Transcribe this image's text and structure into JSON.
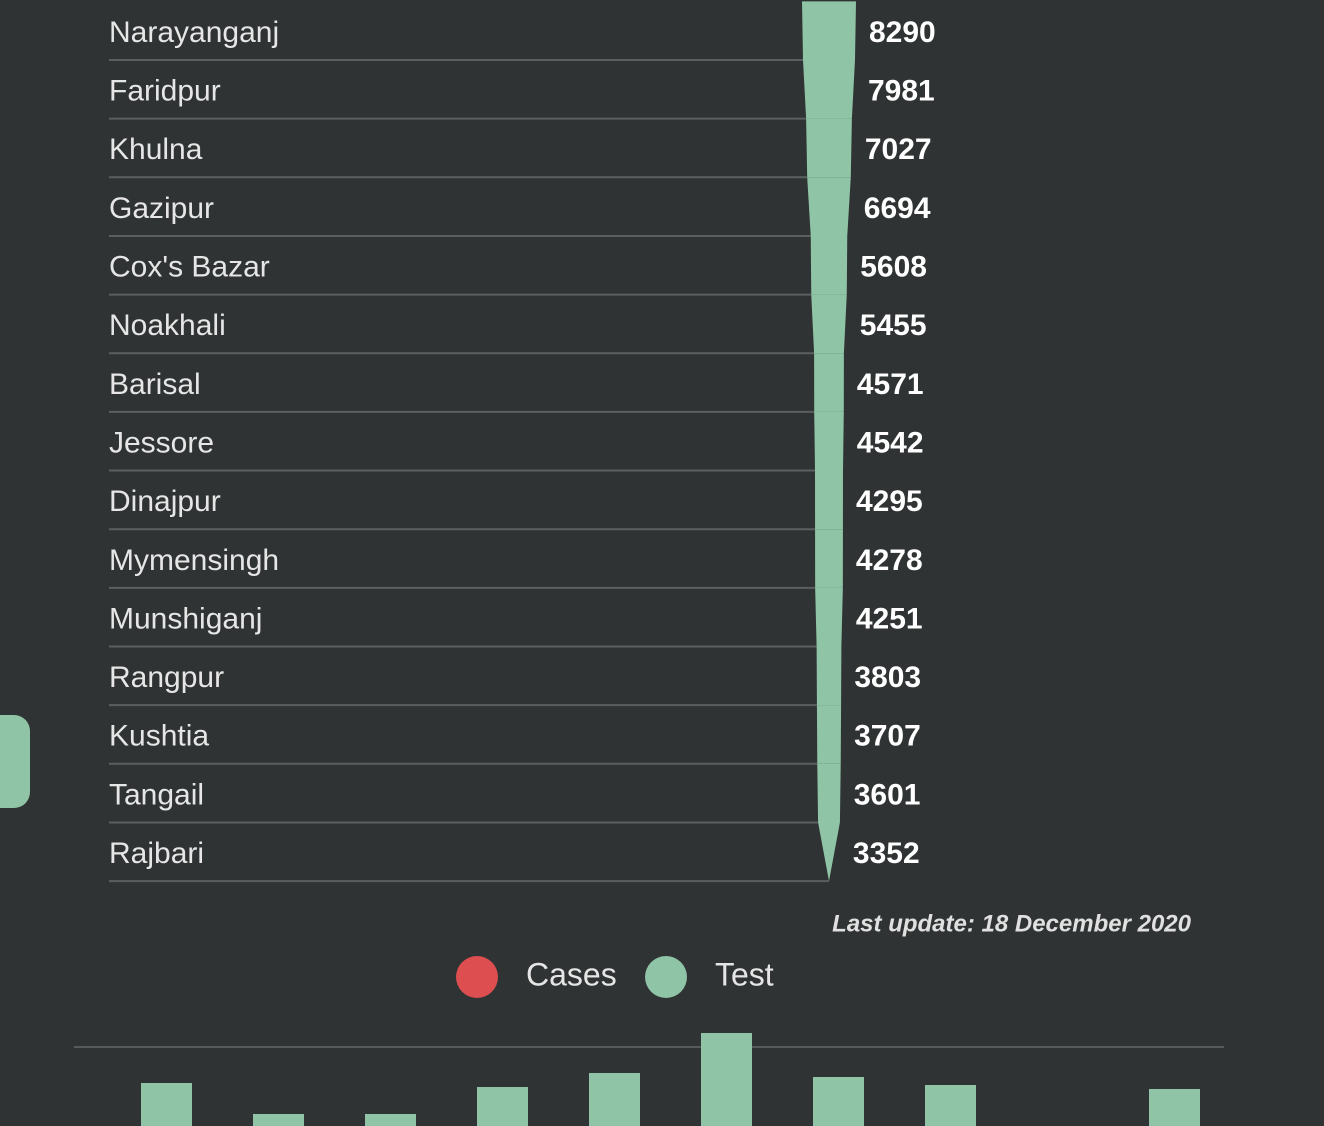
{
  "chart_data": [
    {
      "type": "funnel",
      "categories": [
        "Narayanganj",
        "Faridpur",
        "Khulna",
        "Gazipur",
        "Cox's Bazar",
        "Noakhali",
        "Barisal",
        "Jessore",
        "Dinajpur",
        "Mymensingh",
        "Munshiganj",
        "Rangpur",
        "Kushtia",
        "Tangail",
        "Rajbari"
      ],
      "values": [
        8290,
        7981,
        7027,
        6694,
        5608,
        5455,
        4571,
        4542,
        4295,
        4278,
        4251,
        3803,
        3707,
        3601,
        3352
      ],
      "color": "#8fc4a6",
      "annotation": "Last update: 18 December 2020"
    },
    {
      "type": "bar",
      "categories": [
        null,
        null,
        null,
        null,
        null,
        null,
        null,
        null,
        null,
        null
      ],
      "series": [
        {
          "name": "Cases",
          "color": "#dc4e50",
          "values": [
            null,
            null,
            null,
            null,
            null,
            null,
            null,
            null,
            null,
            null
          ]
        },
        {
          "name": "Test",
          "color": "#8fc4a6",
          "values": [
            43,
            12,
            12,
            39,
            53,
            93,
            49,
            41,
            null,
            37
          ]
        }
      ]
    }
  ]
}
